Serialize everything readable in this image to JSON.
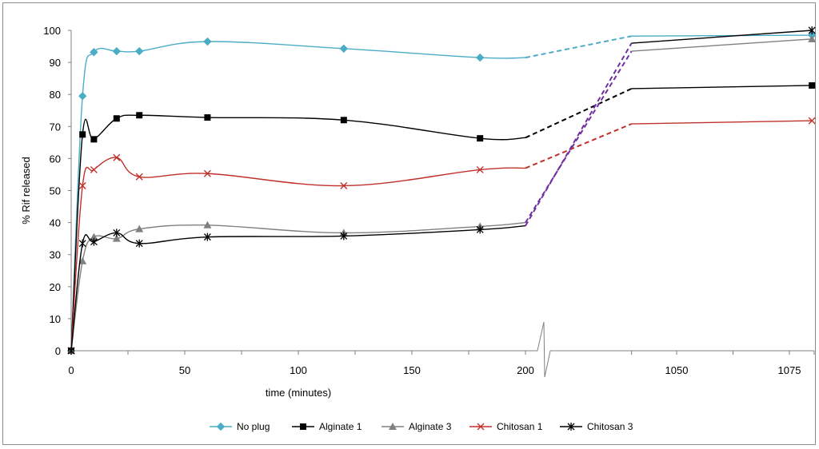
{
  "chart_data": {
    "type": "line",
    "title": "",
    "xlabel": "time (minutes)",
    "ylabel": "% Rif released",
    "ylim": [
      0,
      100
    ],
    "y_ticks": [
      "0",
      "10",
      "20",
      "30",
      "40",
      "50",
      "60",
      "70",
      "80",
      "90",
      "100"
    ],
    "x_ticks_left": [
      "0",
      "50",
      "100",
      "150",
      "200"
    ],
    "x_ticks_right": [
      "1050",
      "1075"
    ],
    "x_break": {
      "left_end": 200,
      "right_start": 1040
    },
    "legend_position": "bottom-center",
    "series": [
      {
        "name": "No plug",
        "color": "#4bacc6",
        "marker": "diamond",
        "x": [
          0,
          5,
          10,
          20,
          30,
          60,
          120,
          180,
          200
        ],
        "y": [
          0,
          79.5,
          93.2,
          93.5,
          93.5,
          96.5,
          94.3,
          91.5,
          91.5
        ],
        "x_late": [
          1040,
          1080
        ],
        "y_late": [
          98.2,
          98.5
        ]
      },
      {
        "name": "Alginate 1",
        "color": "#000000",
        "marker": "square",
        "x": [
          0,
          5,
          10,
          20,
          30,
          60,
          120,
          180,
          200
        ],
        "y": [
          0,
          67.5,
          66,
          72.5,
          73.5,
          72.8,
          72,
          66.3,
          66.5
        ],
        "x_late": [
          1040,
          1080
        ],
        "y_late": [
          81.8,
          82.8
        ]
      },
      {
        "name": "Alginate 3",
        "color": "#808080",
        "marker": "triangle",
        "x": [
          0,
          5,
          10,
          20,
          30,
          60,
          120,
          180,
          200
        ],
        "y": [
          0,
          28,
          35.5,
          35,
          38,
          39.2,
          36.8,
          38.8,
          40
        ],
        "x_late": [
          1040,
          1080
        ],
        "y_late": [
          93.5,
          97.3
        ]
      },
      {
        "name": "Chitosan 1",
        "color": "#c0302a",
        "marker": "x",
        "x": [
          0,
          5,
          10,
          20,
          30,
          60,
          120,
          180,
          200
        ],
        "y": [
          0,
          51.5,
          56.5,
          60.3,
          54.3,
          55.3,
          51.5,
          56.5,
          57
        ],
        "x_late": [
          1040,
          1080
        ],
        "y_late": [
          70.8,
          71.8
        ]
      },
      {
        "name": "Chitosan 3",
        "color": "#000000",
        "marker": "star",
        "x": [
          0,
          5,
          10,
          20,
          30,
          60,
          120,
          180,
          200
        ],
        "y": [
          0,
          33.5,
          34,
          36.8,
          33.5,
          35.5,
          35.8,
          37.8,
          39
        ],
        "x_late": [
          1040,
          1080
        ],
        "y_late": [
          96,
          100
        ]
      }
    ]
  }
}
